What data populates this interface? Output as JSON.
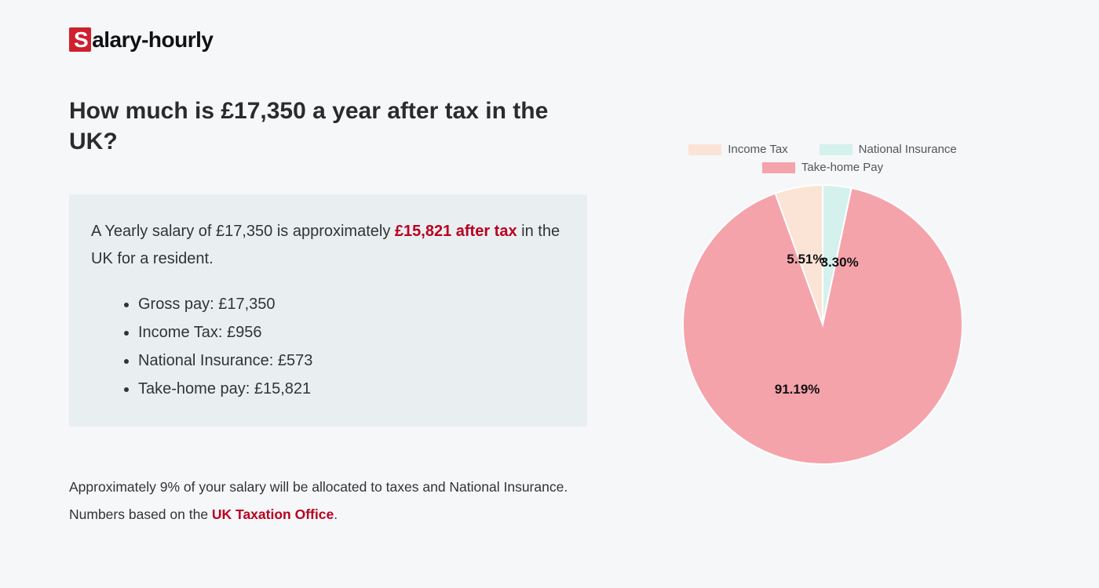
{
  "logo": {
    "prefix": "S",
    "rest": "alary-hourly"
  },
  "title": "How much is £17,350 a year after tax in the UK?",
  "summary": {
    "intro_prefix": "A Yearly salary of £17,350 is approximately ",
    "highlight": "£15,821 after tax",
    "intro_suffix": " in the UK for a resident.",
    "bullets": [
      "Gross pay: £17,350",
      "Income Tax: £956",
      "National Insurance: £573",
      "Take-home pay: £15,821"
    ]
  },
  "footnote": {
    "line1": "Approximately 9% of your salary will be allocated to taxes and National Insurance.",
    "line2_prefix": "Numbers based on the ",
    "link_text": "UK Taxation Office",
    "line2_suffix": "."
  },
  "chart": {
    "type": "pie",
    "background_color": "#f5f7f9",
    "legend": [
      {
        "label": "Income Tax",
        "color": "#fbe3d5"
      },
      {
        "label": "National Insurance",
        "color": "#d4f1ed"
      },
      {
        "label": "Take-home Pay",
        "color": "#f5a3ab"
      }
    ],
    "slices": [
      {
        "label": "Income Tax",
        "value": 5.51,
        "percent_label": "5.51%",
        "color": "#fbe3d5"
      },
      {
        "label": "National Insurance",
        "value": 3.3,
        "percent_label": "3.30%",
        "color": "#d4f1ed"
      },
      {
        "label": "Take-home Pay",
        "value": 91.19,
        "percent_label": "91.19%",
        "color": "#f5a3ab"
      }
    ],
    "label_fontsize": 17,
    "label_fontweight": 700,
    "legend_fontsize": 15,
    "stroke_color": "#ffffff",
    "stroke_width": 2,
    "radius": 178
  }
}
